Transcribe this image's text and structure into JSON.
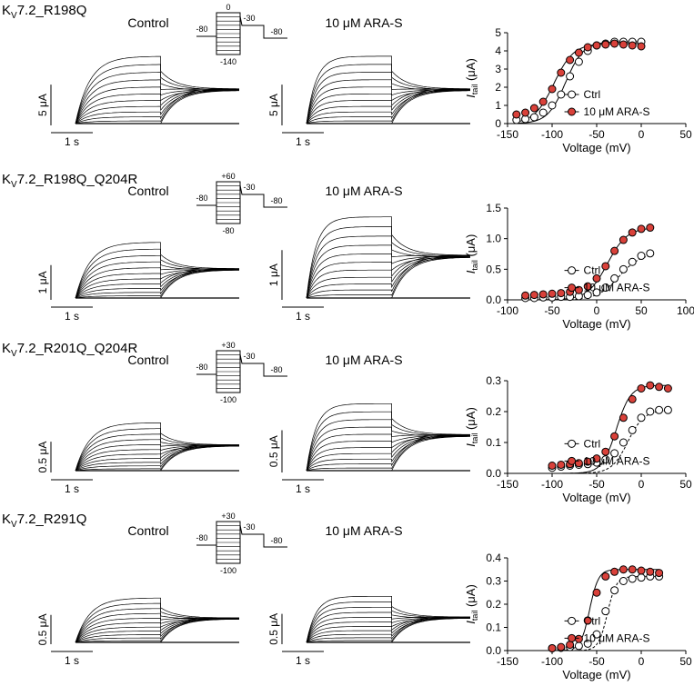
{
  "ctrl_color": "#ffffff",
  "drug_color": "#d9413a",
  "rows": [
    {
      "title_prefix": "K",
      "title_sub": "V",
      "title_suffix": "7.2_R198Q",
      "control_label": "Control",
      "drug_label": "10 μM ARA-S",
      "current_scale": "5 μA",
      "time_scale": "1 s",
      "protocol_labels": {
        "hold": "-80",
        "top": "0",
        "bottom": "-140",
        "tail": "-30",
        "end": "-80"
      }
    },
    {
      "title_prefix": "K",
      "title_sub": "V",
      "title_suffix": "7.2_R198Q_Q204R",
      "control_label": "Control",
      "drug_label": "10 μM ARA-S",
      "current_scale": "1 μA",
      "time_scale": "1 s",
      "protocol_labels": {
        "hold": "-80",
        "top": "+60",
        "bottom": "-80",
        "tail": "-30",
        "end": "-80"
      }
    },
    {
      "title_prefix": "K",
      "title_sub": "V",
      "title_suffix": "7.2_R201Q_Q204R",
      "control_label": "Control",
      "drug_label": "10 μM ARA-S",
      "current_scale": "0.5 μA",
      "time_scale": "1 s",
      "protocol_labels": {
        "hold": "-80",
        "top": "+30",
        "bottom": "-100",
        "tail": "-30",
        "end": "-80"
      }
    },
    {
      "title_prefix": "K",
      "title_sub": "V",
      "title_suffix": "7.2_R291Q",
      "control_label": "Control",
      "drug_label": "10 μM ARA-S",
      "current_scale": "0.5 μA",
      "time_scale": "1 s",
      "protocol_labels": {
        "hold": "-80",
        "top": "+30",
        "bottom": "-100",
        "tail": "-30",
        "end": "-80"
      }
    }
  ],
  "chart_data": [
    {
      "type": "scatter",
      "xlabel": "Voltage (mV)",
      "ylabel_main": "I",
      "ylabel_sub": "tail",
      "ylabel_unit": " (μA)",
      "xlim": [
        -150,
        50
      ],
      "ylim": [
        0,
        5
      ],
      "xticks": [
        "-150",
        "-100",
        "-50",
        "0",
        "50"
      ],
      "yticks": [
        "0",
        "1",
        "2",
        "3",
        "4",
        "5"
      ],
      "legend": [
        "Ctrl",
        "10 μM ARA-S"
      ],
      "series": [
        {
          "name": "Ctrl",
          "x": [
            -140,
            -130,
            -120,
            -110,
            -100,
            -90,
            -80,
            -70,
            -60,
            -50,
            -40,
            -30,
            -20,
            -10,
            0
          ],
          "y": [
            0.2,
            0.25,
            0.35,
            0.6,
            1.0,
            1.6,
            2.6,
            3.4,
            4.0,
            4.3,
            4.4,
            4.5,
            4.5,
            4.5,
            4.5
          ]
        },
        {
          "name": "10 μM ARA-S",
          "x": [
            -140,
            -130,
            -120,
            -110,
            -100,
            -90,
            -80,
            -70,
            -60,
            -50,
            -40,
            -30,
            -20,
            -10,
            0
          ],
          "y": [
            0.5,
            0.6,
            0.85,
            1.2,
            1.9,
            2.8,
            3.5,
            3.9,
            4.2,
            4.3,
            4.35,
            4.4,
            4.35,
            4.3,
            4.25
          ]
        }
      ]
    },
    {
      "type": "scatter",
      "xlabel": "Voltage (mV)",
      "ylabel_main": "I",
      "ylabel_sub": "tail",
      "ylabel_unit": " (μA)",
      "xlim": [
        -100,
        100
      ],
      "ylim": [
        0,
        1.5
      ],
      "xticks": [
        "-100",
        "-50",
        "0",
        "50",
        "100"
      ],
      "yticks": [
        "0.0",
        "0.5",
        "1.0",
        "1.5"
      ],
      "legend": [
        "Ctrl",
        "10 μM ARA-S"
      ],
      "series": [
        {
          "name": "Ctrl",
          "x": [
            -80,
            -70,
            -60,
            -50,
            -40,
            -30,
            -20,
            -10,
            0,
            10,
            20,
            30,
            40,
            50,
            60
          ],
          "y": [
            0.03,
            0.03,
            0.04,
            0.04,
            0.05,
            0.05,
            0.06,
            0.08,
            0.12,
            0.2,
            0.35,
            0.5,
            0.62,
            0.72,
            0.76
          ]
        },
        {
          "name": "10 μM ARA-S",
          "x": [
            -80,
            -70,
            -60,
            -50,
            -40,
            -30,
            -20,
            -10,
            0,
            10,
            20,
            30,
            40,
            50,
            60
          ],
          "y": [
            0.07,
            0.08,
            0.09,
            0.1,
            0.11,
            0.13,
            0.16,
            0.22,
            0.35,
            0.55,
            0.8,
            0.98,
            1.1,
            1.16,
            1.18
          ]
        }
      ]
    },
    {
      "type": "scatter",
      "xlabel": "Voltage (mV)",
      "ylabel_main": "I",
      "ylabel_sub": "tail",
      "ylabel_unit": " (μA)",
      "xlim": [
        -150,
        50
      ],
      "ylim": [
        0,
        0.3
      ],
      "xticks": [
        "-150",
        "-100",
        "-50",
        "0",
        "50"
      ],
      "yticks": [
        "0.0",
        "0.1",
        "0.2",
        "0.3"
      ],
      "legend": [
        "Ctrl",
        "10 μM ARA-S"
      ],
      "series": [
        {
          "name": "Ctrl",
          "x": [
            -100,
            -90,
            -80,
            -70,
            -60,
            -50,
            -40,
            -30,
            -20,
            -10,
            0,
            10,
            20,
            30
          ],
          "y": [
            0.018,
            0.022,
            0.025,
            0.028,
            0.03,
            0.035,
            0.045,
            0.065,
            0.1,
            0.14,
            0.18,
            0.2,
            0.205,
            0.205
          ]
        },
        {
          "name": "10 μM ARA-S",
          "x": [
            -100,
            -90,
            -80,
            -70,
            -60,
            -50,
            -40,
            -30,
            -20,
            -10,
            0,
            10,
            20,
            30
          ],
          "y": [
            0.025,
            0.028,
            0.03,
            0.033,
            0.038,
            0.048,
            0.07,
            0.12,
            0.18,
            0.24,
            0.275,
            0.285,
            0.28,
            0.275
          ]
        }
      ]
    },
    {
      "type": "scatter",
      "xlabel": "Voltage (mV)",
      "ylabel_main": "I",
      "ylabel_sub": "tail",
      "ylabel_unit": " (μA)",
      "xlim": [
        -150,
        50
      ],
      "ylim": [
        0,
        0.4
      ],
      "xticks": [
        "-150",
        "-100",
        "-50",
        "0",
        "50"
      ],
      "yticks": [
        "0.0",
        "0.1",
        "0.2",
        "0.3",
        "0.4"
      ],
      "legend": [
        "Ctrl",
        "10 μM ARA-S"
      ],
      "series": [
        {
          "name": "Ctrl",
          "x": [
            -100,
            -90,
            -80,
            -70,
            -60,
            -50,
            -40,
            -30,
            -20,
            -10,
            0,
            10,
            20
          ],
          "y": [
            0.01,
            0.012,
            0.015,
            0.02,
            0.03,
            0.07,
            0.17,
            0.26,
            0.3,
            0.31,
            0.315,
            0.32,
            0.32
          ]
        },
        {
          "name": "10 μM ARA-S",
          "x": [
            -100,
            -90,
            -80,
            -70,
            -60,
            -50,
            -40,
            -30,
            -20,
            -10,
            0,
            10,
            20
          ],
          "y": [
            0.01,
            0.015,
            0.025,
            0.05,
            0.13,
            0.25,
            0.32,
            0.34,
            0.35,
            0.35,
            0.345,
            0.34,
            0.335
          ]
        }
      ]
    }
  ]
}
